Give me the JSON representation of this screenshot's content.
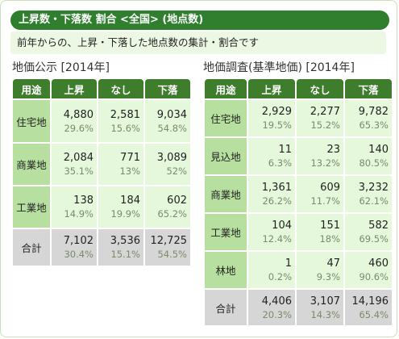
{
  "header": {
    "title": "上昇数・下落数 割合 <全国> (地点数)"
  },
  "description": "前年からの、上昇・下落した地点数の集計・割合です",
  "koji": {
    "title": "地価公示 [2014年]",
    "columns": [
      "用途",
      "上昇",
      "なし",
      "下落"
    ],
    "rows": [
      {
        "label": "住宅地",
        "cells": [
          {
            "n": "4,880",
            "p": "29.6%"
          },
          {
            "n": "2,581",
            "p": "15.6%"
          },
          {
            "n": "9,034",
            "p": "54.8%"
          }
        ]
      },
      {
        "label": "商業地",
        "cells": [
          {
            "n": "2,084",
            "p": "35.1%"
          },
          {
            "n": "771",
            "p": "13%"
          },
          {
            "n": "3,089",
            "p": "52%"
          }
        ]
      },
      {
        "label": "工業地",
        "cells": [
          {
            "n": "138",
            "p": "14.9%"
          },
          {
            "n": "184",
            "p": "19.9%"
          },
          {
            "n": "602",
            "p": "65.2%"
          }
        ]
      }
    ],
    "total": {
      "label": "合計",
      "cells": [
        {
          "n": "7,102",
          "p": "30.4%"
        },
        {
          "n": "3,536",
          "p": "15.1%"
        },
        {
          "n": "12,725",
          "p": "54.5%"
        }
      ]
    }
  },
  "chosa": {
    "title": "地価調査(基準地価) [2014年]",
    "columns": [
      "用途",
      "上昇",
      "なし",
      "下落"
    ],
    "rows": [
      {
        "label": "住宅地",
        "cells": [
          {
            "n": "2,929",
            "p": "19.5%"
          },
          {
            "n": "2,277",
            "p": "15.2%"
          },
          {
            "n": "9,782",
            "p": "65.3%"
          }
        ]
      },
      {
        "label": "見込地",
        "cells": [
          {
            "n": "11",
            "p": "6.3%"
          },
          {
            "n": "23",
            "p": "13.2%"
          },
          {
            "n": "140",
            "p": "80.5%"
          }
        ]
      },
      {
        "label": "商業地",
        "cells": [
          {
            "n": "1,361",
            "p": "26.2%"
          },
          {
            "n": "609",
            "p": "11.7%"
          },
          {
            "n": "3,232",
            "p": "62.1%"
          }
        ]
      },
      {
        "label": "工業地",
        "cells": [
          {
            "n": "104",
            "p": "12.4%"
          },
          {
            "n": "151",
            "p": "18%"
          },
          {
            "n": "582",
            "p": "69.5%"
          }
        ]
      },
      {
        "label": "林地",
        "cells": [
          {
            "n": "1",
            "p": "0.2%"
          },
          {
            "n": "47",
            "p": "9.3%"
          },
          {
            "n": "460",
            "p": "90.6%"
          }
        ]
      }
    ],
    "total": {
      "label": "合計",
      "cells": [
        {
          "n": "4,406",
          "p": "20.3%"
        },
        {
          "n": "3,107",
          "p": "14.3%"
        },
        {
          "n": "14,196",
          "p": "65.4%"
        }
      ]
    }
  }
}
